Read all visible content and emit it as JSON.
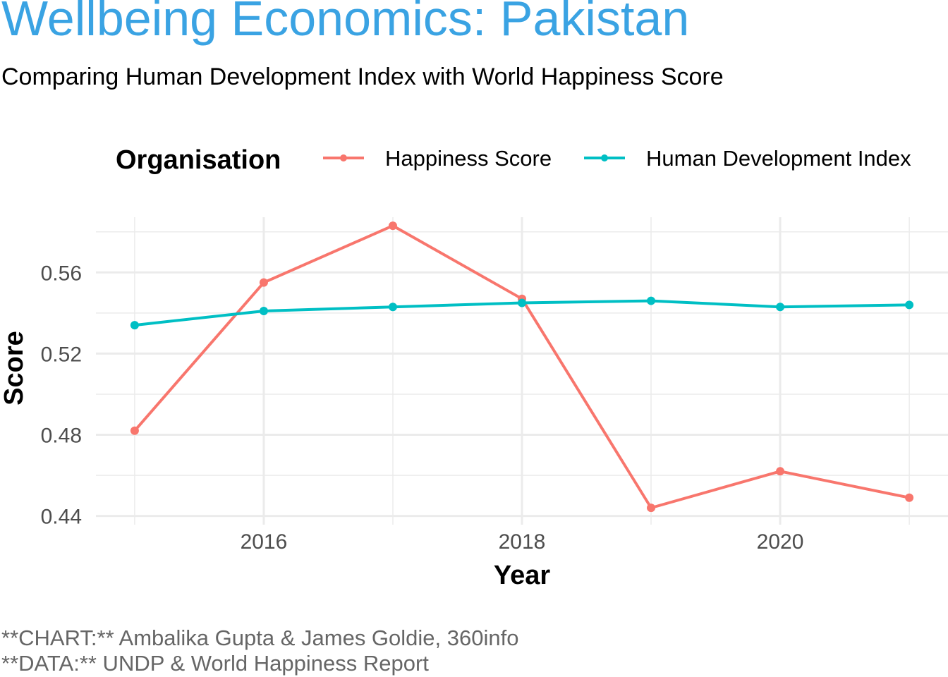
{
  "title": "Wellbeing Economics: Pakistan",
  "subtitle": "Comparing Human Development Index with World Happiness Score",
  "caption": [
    "**CHART:** Ambalika Gupta & James Goldie, 360info",
    "**DATA:** UNDP & World Happiness Report"
  ],
  "colors": {
    "title": "#3AA3E3",
    "happiness": "#F8766D",
    "hdi": "#00BFC4",
    "grid": "#EBEBEB"
  },
  "chart_data": {
    "type": "line",
    "x": [
      2015,
      2016,
      2017,
      2018,
      2019,
      2020,
      2021
    ],
    "series": [
      {
        "name": "Happiness Score",
        "values": [
          0.482,
          0.555,
          0.583,
          0.547,
          0.444,
          0.462,
          0.449
        ]
      },
      {
        "name": "Human Development Index",
        "values": [
          0.534,
          0.541,
          0.543,
          0.545,
          0.546,
          0.543,
          0.544
        ]
      }
    ],
    "xlabel": "Year",
    "ylabel": "Score",
    "legend_title": "Organisation",
    "x_ticks": [
      "2016",
      "2018",
      "2020"
    ],
    "y_ticks": [
      "0.44",
      "0.48",
      "0.52",
      "0.56"
    ],
    "xlim": [
      2014.7,
      2021.3
    ],
    "ylim": [
      0.4357,
      0.5872
    ],
    "grid": true,
    "legend_position": "top"
  }
}
